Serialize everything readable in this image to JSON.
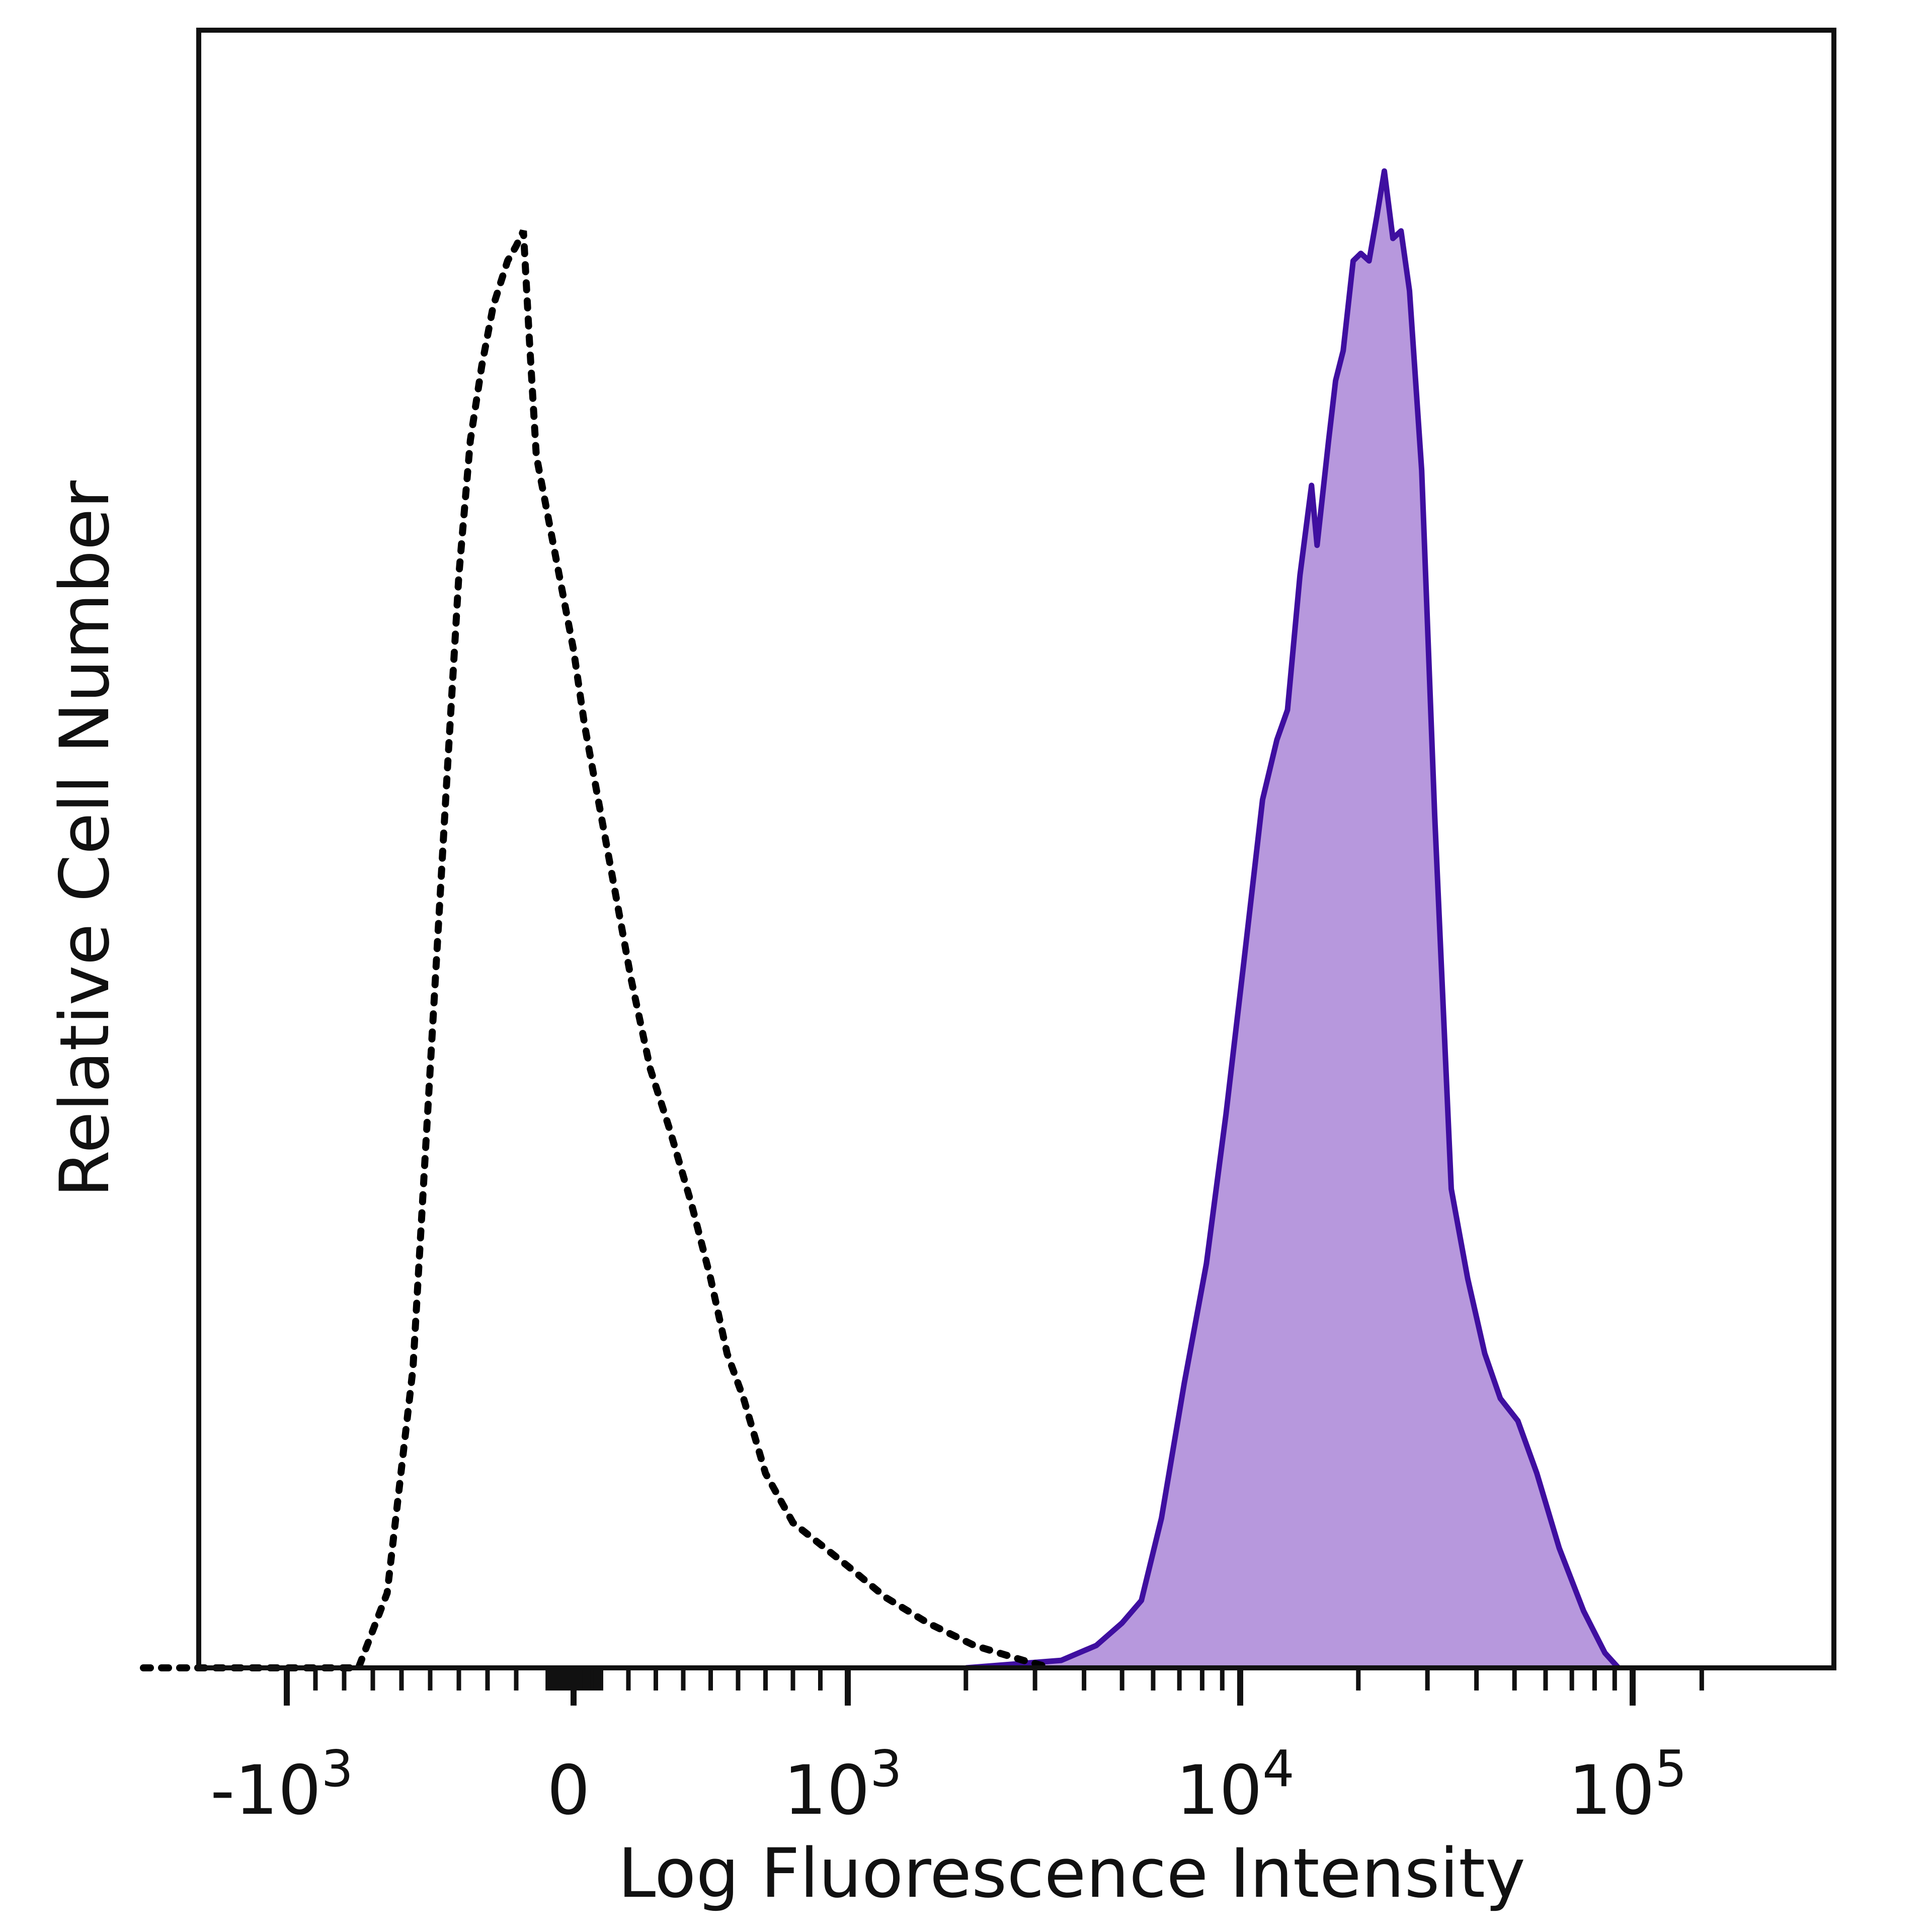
{
  "chart_data": {
    "type": "area",
    "xlabel": "Log Fluorescence Intensity",
    "ylabel": "Relative Cell Number",
    "x_scale": "biexponential",
    "grid": false,
    "colors": {
      "stained_fill": "#b798dd",
      "stained_line": "#3f0fa0",
      "control_line": "#000000"
    },
    "x_ticks": [
      {
        "value": -1000,
        "base": "-10",
        "exp": "3"
      },
      {
        "value": 0,
        "base": "0",
        "exp": ""
      },
      {
        "value": 1000,
        "base": "10",
        "exp": "3"
      },
      {
        "value": 10000,
        "base": "10",
        "exp": "4"
      },
      {
        "value": 100000,
        "base": "10",
        "exp": "5"
      }
    ],
    "series": [
      {
        "style": "dotted",
        "points": [
          [
            -1500,
            0
          ],
          [
            -750,
            0
          ],
          [
            -650,
            0.05
          ],
          [
            -560,
            0.2
          ],
          [
            -500,
            0.4
          ],
          [
            -440,
            0.6
          ],
          [
            -400,
            0.73
          ],
          [
            -360,
            0.82
          ],
          [
            -320,
            0.87
          ],
          [
            -280,
            0.91
          ],
          [
            -230,
            0.94
          ],
          [
            -200,
            0.95
          ],
          [
            -175,
            0.96
          ],
          [
            -155,
            0.89
          ],
          [
            -130,
            0.81
          ],
          [
            -100,
            0.78
          ],
          [
            -50,
            0.73
          ],
          [
            0,
            0.68
          ],
          [
            40,
            0.63
          ],
          [
            90,
            0.58
          ],
          [
            150,
            0.52
          ],
          [
            210,
            0.46
          ],
          [
            280,
            0.4
          ],
          [
            350,
            0.36
          ],
          [
            430,
            0.31
          ],
          [
            500,
            0.26
          ],
          [
            560,
            0.21
          ],
          [
            620,
            0.18
          ],
          [
            700,
            0.13
          ],
          [
            800,
            0.097
          ],
          [
            1000,
            0.068
          ],
          [
            1250,
            0.047
          ],
          [
            1600,
            0.03
          ],
          [
            2100,
            0.015
          ],
          [
            2800,
            0.005
          ],
          [
            3300,
            0
          ]
        ]
      },
      {
        "style": "filled",
        "points": [
          [
            2000,
            0
          ],
          [
            3500,
            0.005
          ],
          [
            4300,
            0.015
          ],
          [
            5000,
            0.03
          ],
          [
            5600,
            0.045
          ],
          [
            6300,
            0.1
          ],
          [
            7200,
            0.19
          ],
          [
            8200,
            0.27
          ],
          [
            9200,
            0.37
          ],
          [
            10200,
            0.47
          ],
          [
            11400,
            0.58
          ],
          [
            12400,
            0.62
          ],
          [
            13200,
            0.64
          ],
          [
            14200,
            0.73
          ],
          [
            15200,
            0.79
          ],
          [
            15700,
            0.75
          ],
          [
            16800,
            0.82
          ],
          [
            17500,
            0.86
          ],
          [
            18300,
            0.88
          ],
          [
            19400,
            0.94
          ],
          [
            20300,
            0.945
          ],
          [
            21300,
            0.94
          ],
          [
            22300,
            0.97
          ],
          [
            23300,
            1.0
          ],
          [
            24500,
            0.955
          ],
          [
            25700,
            0.96
          ],
          [
            27000,
            0.92
          ],
          [
            29000,
            0.8
          ],
          [
            31300,
            0.57
          ],
          [
            34500,
            0.32
          ],
          [
            38000,
            0.26
          ],
          [
            42000,
            0.21
          ],
          [
            46000,
            0.18
          ],
          [
            51000,
            0.165
          ],
          [
            57000,
            0.13
          ],
          [
            65000,
            0.08
          ],
          [
            75000,
            0.038
          ],
          [
            85000,
            0.01
          ],
          [
            92000,
            0
          ]
        ]
      }
    ]
  }
}
